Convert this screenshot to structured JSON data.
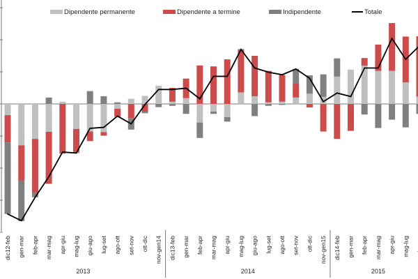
{
  "chart_data": {
    "type": "bar",
    "stacked": true,
    "title": "",
    "xlabel": "",
    "ylabel": "",
    "ylim": [
      -3.9,
      3.1
    ],
    "y_ticks_printed": false,
    "grid": false,
    "legend_position": "top",
    "colors": {
      "permanent": "#c0c0c0",
      "temporary": "#cc4c4c",
      "independent": "#808080",
      "total": "#000000"
    },
    "categories": [
      "dic12-feb",
      "gen-mar",
      "feb-apr",
      "mar-mag",
      "apr-giu",
      "mag-lug",
      "giu-ago",
      "lug-set",
      "ago-ott",
      "set-nov",
      "ott-dic",
      "nov-gen14",
      "dic13-feb",
      "gen-mar",
      "feb-apr",
      "mar-mag",
      "apr-giu",
      "mag-lug",
      "giu-ago",
      "lug-set",
      "ago-ott",
      "set-nov",
      "ott-dic",
      "nov-gen15",
      "dic14-feb",
      "gen-mar",
      "feb-apr",
      "mar-mag",
      "apr-giu",
      "mag-lug",
      "giu-ago"
    ],
    "year_groups": [
      {
        "label": "2013",
        "count": 12
      },
      {
        "label": "2014",
        "count": 12
      },
      {
        "label": "2015",
        "count": 7
      }
    ],
    "series": [
      {
        "name": "Dipendente permanente",
        "kind": "bar",
        "values": [
          -0.35,
          -1.29,
          -1.09,
          -0.87,
          0.07,
          -0.78,
          -0.86,
          -0.88,
          -0.15,
          0.16,
          0.25,
          0.57,
          0.07,
          0.18,
          -0.58,
          -0.24,
          -0.41,
          0.36,
          0.24,
          0.05,
          0.07,
          0.2,
          0.32,
          0.22,
          0.85,
          1.07,
          1.19,
          1.03,
          1.03,
          0.67,
          0.23
        ]
      },
      {
        "name": "Dipendente a termine",
        "kind": "bar",
        "values": [
          -0.85,
          -1.09,
          -1.68,
          -1.62,
          -1.55,
          -0.7,
          -0.3,
          -0.11,
          -0.25,
          -0.44,
          -0.24,
          0,
          0.43,
          0.61,
          1.2,
          1.17,
          1.39,
          1.33,
          1.26,
          0.98,
          0.83,
          0.43,
          -0.11,
          -0.86,
          -1.09,
          -0.84,
          0.24,
          0.82,
          1.49,
          1.43,
          1.88
        ]
      },
      {
        "name": "Indipendente",
        "kind": "bar",
        "values": [
          -2.23,
          -1.27,
          -0.14,
          0.2,
          0,
          -0.05,
          0.4,
          0.24,
          0.05,
          -0.36,
          -0.05,
          -0.1,
          -0.06,
          -0.31,
          -0.48,
          -0.07,
          -0.14,
          0.02,
          -0.38,
          -0.06,
          -0.03,
          0.46,
          0.57,
          0.7,
          0.57,
          0,
          -0.33,
          -0.75,
          -0.49,
          -0.73,
          -0.31
        ]
      },
      {
        "name": "Totale",
        "kind": "line",
        "values": [
          -3.43,
          -3.64,
          -2.91,
          -2.27,
          -1.5,
          -1.53,
          -0.76,
          -0.73,
          -0.38,
          -0.62,
          -0.02,
          0.45,
          0.45,
          0.49,
          0.16,
          0.86,
          0.86,
          1.7,
          1.12,
          0.99,
          0.91,
          1.09,
          0.8,
          0.07,
          0.34,
          0.23,
          1.12,
          1.12,
          2.04,
          1.39,
          1.81
        ]
      }
    ]
  }
}
